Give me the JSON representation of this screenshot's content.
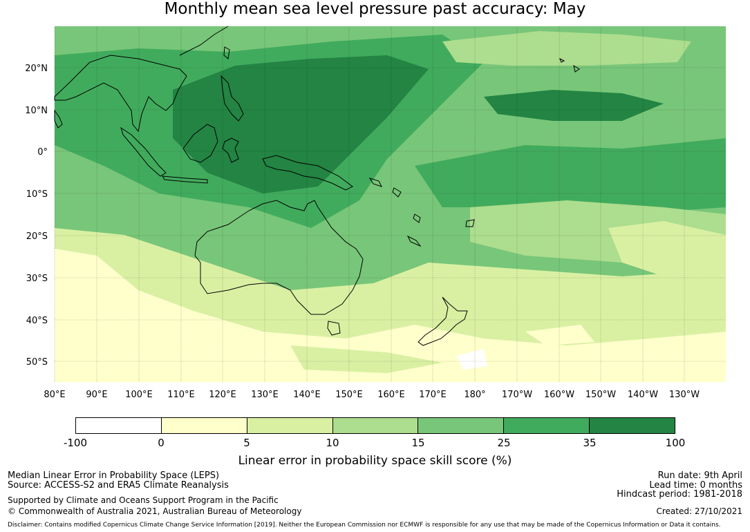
{
  "title": "Monthly mean sea level pressure past accuracy: May",
  "map": {
    "lat_labels": [
      "20°N",
      "10°N",
      "0°",
      "10°S",
      "20°S",
      "30°S",
      "40°S",
      "50°S"
    ],
    "lon_labels": [
      "80°E",
      "90°E",
      "100°E",
      "110°E",
      "120°E",
      "130°E",
      "140°E",
      "150°E",
      "160°E",
      "170°E",
      "180°",
      "170°W",
      "160°W",
      "150°W",
      "140°W",
      "130°W"
    ]
  },
  "colorbar": {
    "ticks": [
      "-100",
      "0",
      "5",
      "10",
      "15",
      "25",
      "35",
      "100"
    ],
    "colors": [
      "#ffffff",
      "#ffffcc",
      "#d9f0a3",
      "#addd8e",
      "#78c679",
      "#41ab5d",
      "#238443"
    ],
    "label": "Linear error in probability space skill score (%)"
  },
  "footer": {
    "method": "Median Linear Error in Probability Space (LEPS)",
    "source": "Source: ACCESS-S2 and ERA5 Climate Reanalysis",
    "support": "Supported by Climate and Oceans Support Program in the Pacific",
    "copyright": "© Commonwealth of Australia 2021, Australian Bureau of Meteorology",
    "run_date": "Run date: 9th April",
    "lead_time": "Lead time: 0 months",
    "hindcast": "Hindcast period: 1981-2018",
    "created": "Created: 27/10/2021",
    "disclaimer": "Disclaimer: Contains modified Copernicus Climate Change Service Information [2019]. Neither the European Commission nor ECMWF is responsible for any use that may be made of the Copernicus Information or Data it contains."
  }
}
